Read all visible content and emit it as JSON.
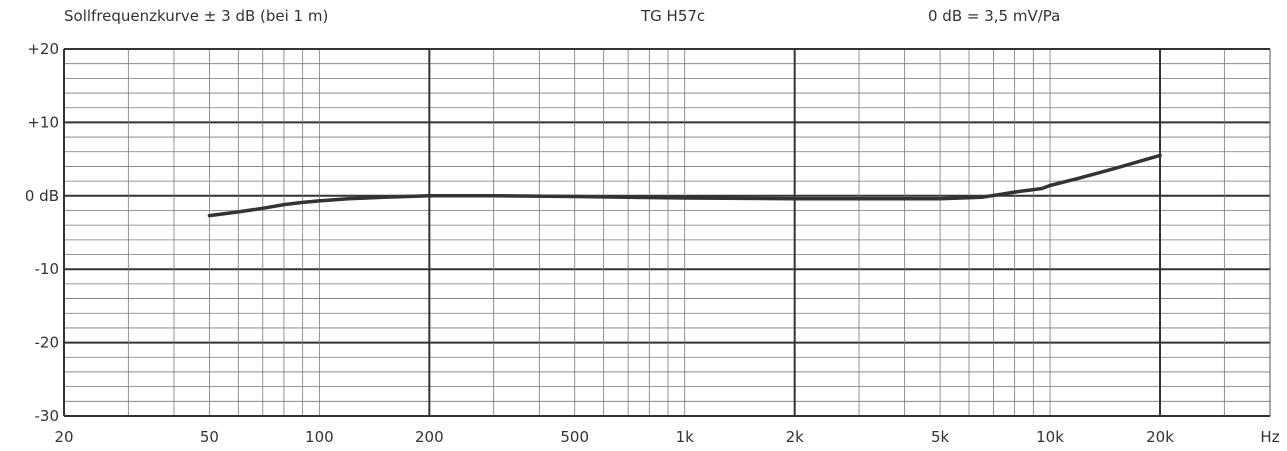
{
  "header": {
    "left": "Sollfrequenzkurve ± 3 dB (bei 1 m)",
    "center": "TG H57c",
    "right": "0 dB =  3,5 mV/Pa"
  },
  "chart_data": {
    "type": "line",
    "title": "Sollfrequenzkurve ± 3 dB (bei 1 m)",
    "xlabel": "",
    "ylabel": "",
    "x_scale": "log",
    "xlim": [
      20,
      40000
    ],
    "ylim": [
      -30,
      20
    ],
    "grid": true,
    "x_tick_labels": [
      {
        "value": 20,
        "label": "20"
      },
      {
        "value": 50,
        "label": "50"
      },
      {
        "value": 100,
        "label": "100"
      },
      {
        "value": 200,
        "label": "200"
      },
      {
        "value": 500,
        "label": "500"
      },
      {
        "value": 1000,
        "label": "1k"
      },
      {
        "value": 2000,
        "label": "2k"
      },
      {
        "value": 5000,
        "label": "5k"
      },
      {
        "value": 10000,
        "label": "10k"
      },
      {
        "value": 20000,
        "label": "20k"
      }
    ],
    "x_unit_label": "Hz",
    "y_tick_labels": [
      {
        "value": 20,
        "label": "+20"
      },
      {
        "value": 10,
        "label": "+10"
      },
      {
        "value": 0,
        "label": "0 dB"
      },
      {
        "value": -10,
        "label": "-10"
      },
      {
        "value": -20,
        "label": "-20"
      },
      {
        "value": -30,
        "label": "-30"
      }
    ],
    "series": [
      {
        "color": "#333333",
        "points": [
          [
            50,
            -2.7
          ],
          [
            60,
            -2.2
          ],
          [
            70,
            -1.7
          ],
          [
            80,
            -1.2
          ],
          [
            90,
            -0.9
          ],
          [
            100,
            -0.7
          ],
          [
            120,
            -0.4
          ],
          [
            150,
            -0.2
          ],
          [
            200,
            0.0
          ],
          [
            300,
            0.0
          ],
          [
            500,
            -0.1
          ],
          [
            700,
            -0.2
          ],
          [
            1000,
            -0.3
          ],
          [
            2000,
            -0.4
          ],
          [
            3000,
            -0.4
          ],
          [
            5000,
            -0.4
          ],
          [
            6500,
            -0.2
          ],
          [
            8000,
            0.5
          ],
          [
            9500,
            1.0
          ],
          [
            10000,
            1.4
          ],
          [
            12000,
            2.4
          ],
          [
            15000,
            3.7
          ],
          [
            20000,
            5.5
          ]
        ]
      }
    ]
  }
}
